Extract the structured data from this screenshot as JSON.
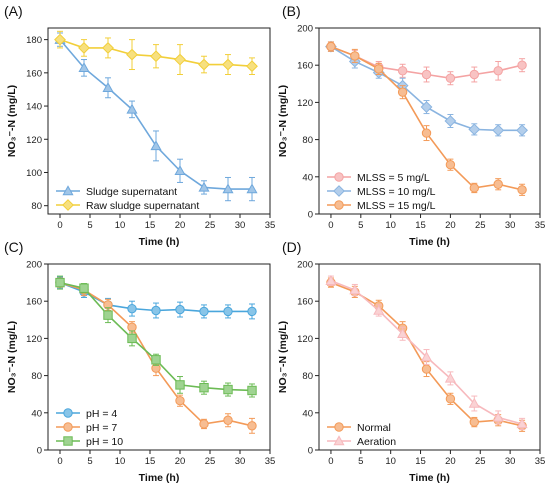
{
  "chart_data": [
    {
      "type": "line",
      "panel_label": "(A)",
      "xlabel": "Time (h)",
      "ylabel": "NO₃⁻-N (mg/L)",
      "xlim": [
        -2,
        35
      ],
      "ylim": [
        75,
        187
      ],
      "xticks": [
        0,
        5,
        10,
        15,
        20,
        25,
        30,
        35
      ],
      "yticks": [
        80,
        100,
        120,
        140,
        160,
        180
      ],
      "legend_position": "bottom-left",
      "x": [
        0,
        4,
        8,
        12,
        16,
        20,
        24,
        28,
        32
      ],
      "series": [
        {
          "name": "Sludge supernatant",
          "color": "#6fa8dc",
          "marker": "triangle",
          "values": [
            180,
            163,
            151,
            138,
            116,
            101,
            91,
            90,
            90
          ],
          "errors": [
            4,
            5,
            6,
            5,
            9,
            7,
            4,
            7,
            7
          ]
        },
        {
          "name": "Raw sludge supernatant",
          "color": "#f2cf3a",
          "marker": "diamond",
          "values": [
            180,
            175,
            175,
            171,
            170,
            168,
            165,
            165,
            164
          ],
          "errors": [
            5,
            5,
            6,
            9,
            7,
            9,
            5,
            6,
            5
          ]
        }
      ]
    },
    {
      "type": "line",
      "panel_label": "(B)",
      "xlabel": "Time (h)",
      "ylabel": "NO₃⁻-N (mg/L)",
      "xlim": [
        -2,
        35
      ],
      "ylim": [
        0,
        200
      ],
      "xticks": [
        0,
        5,
        10,
        15,
        20,
        25,
        30,
        35
      ],
      "yticks": [
        0,
        40,
        80,
        120,
        160,
        200
      ],
      "legend_position": "bottom-left",
      "x": [
        0,
        4,
        8,
        12,
        16,
        20,
        24,
        28,
        32
      ],
      "series": [
        {
          "name": "MLSS = 5 mg/L",
          "color": "#f4a3a3",
          "marker": "circle",
          "values": [
            180,
            170,
            158,
            154,
            150,
            146,
            150,
            154,
            160
          ],
          "errors": [
            5,
            6,
            6,
            7,
            8,
            7,
            8,
            10,
            7
          ]
        },
        {
          "name": "MLSS = 10 mg/L",
          "color": "#8ab4e0",
          "marker": "diamond",
          "values": [
            180,
            164,
            152,
            138,
            115,
            100,
            91,
            90,
            90
          ],
          "errors": [
            5,
            7,
            6,
            8,
            7,
            7,
            6,
            6,
            6
          ]
        },
        {
          "name": "MLSS = 15 mg/L",
          "color": "#f39a58",
          "marker": "circle",
          "values": [
            180,
            170,
            156,
            131,
            87,
            53,
            28,
            32,
            26
          ],
          "errors": [
            5,
            7,
            6,
            7,
            8,
            6,
            5,
            6,
            6
          ]
        }
      ]
    },
    {
      "type": "line",
      "panel_label": "(C)",
      "xlabel": "Time (h)",
      "ylabel": "NO₃⁻-N (mg/L)",
      "xlim": [
        -2,
        35
      ],
      "ylim": [
        0,
        200
      ],
      "xticks": [
        0,
        5,
        10,
        15,
        20,
        25,
        30,
        35
      ],
      "yticks": [
        0,
        40,
        80,
        120,
        160,
        200
      ],
      "legend_position": "bottom-left",
      "x": [
        0,
        4,
        8,
        12,
        16,
        20,
        24,
        28,
        32
      ],
      "series": [
        {
          "name": "pH = 4",
          "color": "#4aa6dc",
          "marker": "circle",
          "values": [
            180,
            170,
            156,
            152,
            150,
            151,
            149,
            149,
            149
          ],
          "errors": [
            6,
            6,
            7,
            8,
            8,
            8,
            7,
            7,
            8
          ]
        },
        {
          "name": "pH = 7",
          "color": "#f39a58",
          "marker": "circle",
          "values": [
            180,
            172,
            156,
            132,
            88,
            53,
            28,
            32,
            26
          ],
          "errors": [
            5,
            6,
            6,
            6,
            8,
            6,
            5,
            7,
            8
          ]
        },
        {
          "name": "pH = 10",
          "color": "#6cbb55",
          "marker": "square",
          "values": [
            180,
            174,
            145,
            120,
            97,
            70,
            67,
            65,
            64
          ],
          "errors": [
            7,
            5,
            8,
            8,
            6,
            9,
            7,
            7,
            7
          ]
        }
      ]
    },
    {
      "type": "line",
      "panel_label": "(D)",
      "xlabel": "Time (h)",
      "ylabel": "NO₃⁻-N (mg/L)",
      "xlim": [
        -2,
        35
      ],
      "ylim": [
        0,
        200
      ],
      "xticks": [
        0,
        5,
        10,
        15,
        20,
        25,
        30,
        35
      ],
      "yticks": [
        0,
        40,
        80,
        120,
        160,
        200
      ],
      "legend_position": "bottom-left",
      "x": [
        0,
        4,
        8,
        12,
        16,
        20,
        24,
        28,
        32
      ],
      "series": [
        {
          "name": "Normal",
          "color": "#f39a58",
          "marker": "circle",
          "values": [
            180,
            170,
            155,
            131,
            87,
            55,
            30,
            32,
            26
          ],
          "errors": [
            5,
            6,
            6,
            7,
            8,
            6,
            5,
            6,
            6
          ]
        },
        {
          "name": "Aeration",
          "color": "#f7b9bd",
          "marker": "triangle",
          "values": [
            182,
            172,
            150,
            125,
            100,
            77,
            50,
            35,
            28
          ],
          "errors": [
            5,
            6,
            6,
            7,
            8,
            7,
            8,
            7,
            6
          ]
        }
      ]
    }
  ]
}
